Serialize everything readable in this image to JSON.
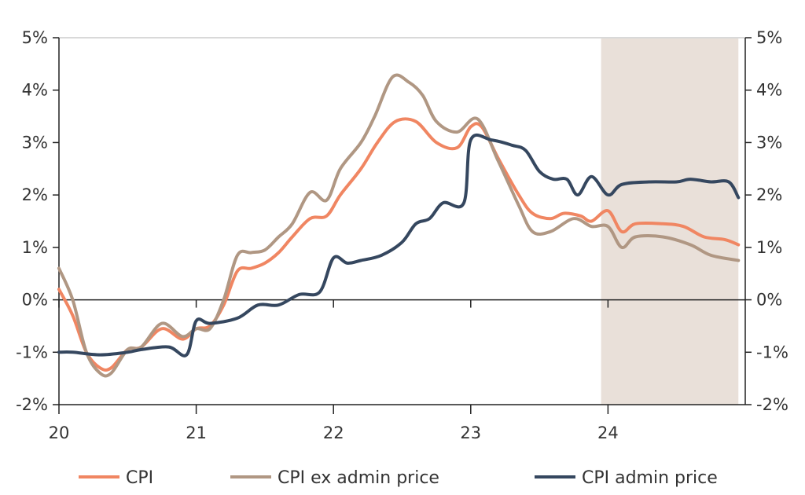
{
  "chart_data": {
    "type": "line",
    "title": "",
    "xlabel": "",
    "ylabel": "",
    "ylim": [
      -2,
      5
    ],
    "xlim": [
      2020,
      2025
    ],
    "x_tick_values": [
      2020,
      2021,
      2022,
      2023,
      2024
    ],
    "x_ticks": [
      "20",
      "21",
      "22",
      "23",
      "24"
    ],
    "y_ticks": [
      5,
      4,
      3,
      2,
      1,
      0,
      -1,
      -2
    ],
    "y_tick_labels": [
      "5%",
      "4%",
      "3%",
      "2%",
      "1%",
      "0%",
      "-1%",
      "-2%"
    ],
    "forecast_shade": [
      2023.95,
      2024.95
    ],
    "grid": false,
    "legend_position": "bottom",
    "colors": {
      "cpi": "#F08662",
      "cpi_ex_admin": "#B09783",
      "cpi_admin": "#35475F",
      "shade": "#E9E0D9",
      "axis": "#222222",
      "frame": "#D9D9D9"
    },
    "series": [
      {
        "name": "CPI",
        "color": "#F08662",
        "points": [
          [
            2020.0,
            0.2
          ],
          [
            2020.1,
            -0.3
          ],
          [
            2020.2,
            -1.0
          ],
          [
            2020.3,
            -1.3
          ],
          [
            2020.38,
            -1.3
          ],
          [
            2020.5,
            -0.95
          ],
          [
            2020.6,
            -0.9
          ],
          [
            2020.75,
            -0.55
          ],
          [
            2020.9,
            -0.75
          ],
          [
            2021.0,
            -0.55
          ],
          [
            2021.1,
            -0.5
          ],
          [
            2021.2,
            -0.1
          ],
          [
            2021.3,
            0.55
          ],
          [
            2021.4,
            0.6
          ],
          [
            2021.5,
            0.7
          ],
          [
            2021.6,
            0.9
          ],
          [
            2021.7,
            1.2
          ],
          [
            2021.83,
            1.55
          ],
          [
            2021.95,
            1.6
          ],
          [
            2022.05,
            2.0
          ],
          [
            2022.2,
            2.5
          ],
          [
            2022.32,
            3.0
          ],
          [
            2022.45,
            3.4
          ],
          [
            2022.6,
            3.4
          ],
          [
            2022.75,
            3.0
          ],
          [
            2022.9,
            2.9
          ],
          [
            2023.0,
            3.3
          ],
          [
            2023.08,
            3.3
          ],
          [
            2023.2,
            2.7
          ],
          [
            2023.35,
            2.0
          ],
          [
            2023.45,
            1.65
          ],
          [
            2023.58,
            1.55
          ],
          [
            2023.68,
            1.65
          ],
          [
            2023.8,
            1.6
          ],
          [
            2023.88,
            1.5
          ],
          [
            2024.0,
            1.7
          ],
          [
            2024.1,
            1.3
          ],
          [
            2024.2,
            1.45
          ],
          [
            2024.4,
            1.45
          ],
          [
            2024.55,
            1.4
          ],
          [
            2024.7,
            1.2
          ],
          [
            2024.85,
            1.15
          ],
          [
            2024.95,
            1.05
          ]
        ]
      },
      {
        "name": "CPI ex admin price",
        "color": "#B09783",
        "points": [
          [
            2020.0,
            0.6
          ],
          [
            2020.1,
            0.0
          ],
          [
            2020.2,
            -1.0
          ],
          [
            2020.3,
            -1.4
          ],
          [
            2020.38,
            -1.4
          ],
          [
            2020.5,
            -0.95
          ],
          [
            2020.6,
            -0.9
          ],
          [
            2020.75,
            -0.45
          ],
          [
            2020.9,
            -0.7
          ],
          [
            2021.0,
            -0.55
          ],
          [
            2021.1,
            -0.55
          ],
          [
            2021.2,
            0.0
          ],
          [
            2021.3,
            0.85
          ],
          [
            2021.4,
            0.9
          ],
          [
            2021.5,
            0.95
          ],
          [
            2021.6,
            1.2
          ],
          [
            2021.7,
            1.45
          ],
          [
            2021.83,
            2.05
          ],
          [
            2021.95,
            1.9
          ],
          [
            2022.05,
            2.5
          ],
          [
            2022.2,
            3.0
          ],
          [
            2022.3,
            3.5
          ],
          [
            2022.43,
            4.25
          ],
          [
            2022.55,
            4.15
          ],
          [
            2022.65,
            3.9
          ],
          [
            2022.75,
            3.4
          ],
          [
            2022.9,
            3.2
          ],
          [
            2023.05,
            3.45
          ],
          [
            2023.2,
            2.65
          ],
          [
            2023.35,
            1.8
          ],
          [
            2023.45,
            1.3
          ],
          [
            2023.58,
            1.3
          ],
          [
            2023.75,
            1.55
          ],
          [
            2023.88,
            1.4
          ],
          [
            2024.0,
            1.4
          ],
          [
            2024.1,
            1.0
          ],
          [
            2024.2,
            1.2
          ],
          [
            2024.4,
            1.2
          ],
          [
            2024.6,
            1.05
          ],
          [
            2024.75,
            0.85
          ],
          [
            2024.95,
            0.75
          ]
        ]
      },
      {
        "name": "CPI admin price",
        "color": "#35475F",
        "points": [
          [
            2020.0,
            -1.0
          ],
          [
            2020.1,
            -1.0
          ],
          [
            2020.3,
            -1.05
          ],
          [
            2020.5,
            -1.0
          ],
          [
            2020.6,
            -0.95
          ],
          [
            2020.8,
            -0.9
          ],
          [
            2020.93,
            -1.05
          ],
          [
            2021.0,
            -0.4
          ],
          [
            2021.1,
            -0.45
          ],
          [
            2021.3,
            -0.35
          ],
          [
            2021.45,
            -0.1
          ],
          [
            2021.6,
            -0.1
          ],
          [
            2021.75,
            0.1
          ],
          [
            2021.9,
            0.15
          ],
          [
            2022.0,
            0.8
          ],
          [
            2022.1,
            0.7
          ],
          [
            2022.2,
            0.75
          ],
          [
            2022.35,
            0.85
          ],
          [
            2022.5,
            1.1
          ],
          [
            2022.6,
            1.45
          ],
          [
            2022.7,
            1.55
          ],
          [
            2022.8,
            1.85
          ],
          [
            2022.95,
            1.85
          ],
          [
            2023.0,
            3.05
          ],
          [
            2023.15,
            3.05
          ],
          [
            2023.3,
            2.95
          ],
          [
            2023.4,
            2.85
          ],
          [
            2023.5,
            2.45
          ],
          [
            2023.6,
            2.3
          ],
          [
            2023.7,
            2.3
          ],
          [
            2023.78,
            2.0
          ],
          [
            2023.88,
            2.35
          ],
          [
            2024.0,
            2.0
          ],
          [
            2024.1,
            2.2
          ],
          [
            2024.3,
            2.25
          ],
          [
            2024.5,
            2.25
          ],
          [
            2024.6,
            2.3
          ],
          [
            2024.75,
            2.25
          ],
          [
            2024.88,
            2.25
          ],
          [
            2024.95,
            1.95
          ]
        ]
      }
    ]
  }
}
